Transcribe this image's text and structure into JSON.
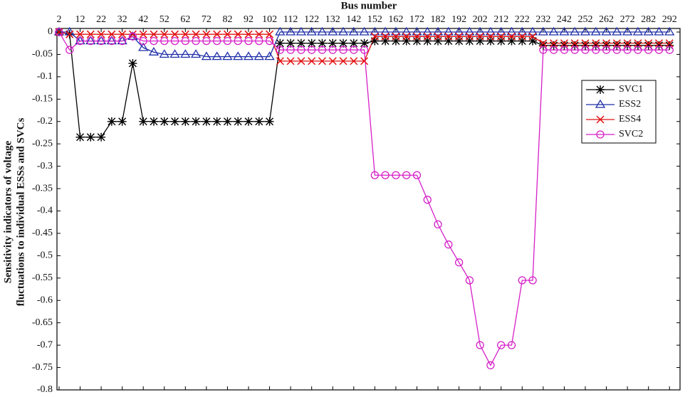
{
  "chart_data": {
    "type": "line",
    "x_label": "Bus number",
    "y_label": [
      "Sensitivity indicators of voltage",
      "fluctuations to individual ESSs and SVCs"
    ],
    "x": [
      2,
      7,
      12,
      17,
      22,
      27,
      32,
      37,
      42,
      47,
      52,
      57,
      62,
      67,
      72,
      77,
      82,
      87,
      92,
      97,
      102,
      107,
      112,
      117,
      122,
      127,
      132,
      137,
      142,
      147,
      152,
      157,
      162,
      167,
      172,
      177,
      182,
      187,
      192,
      197,
      202,
      207,
      212,
      217,
      222,
      227,
      232,
      237,
      242,
      247,
      252,
      257,
      262,
      267,
      272,
      277,
      282,
      287,
      292
    ],
    "series": [
      {
        "name": "SVC1",
        "color": "#000000",
        "marker": "asterisk",
        "values": [
          0,
          -0.005,
          -0.235,
          -0.235,
          -0.235,
          -0.2,
          -0.2,
          -0.07,
          -0.2,
          -0.2,
          -0.2,
          -0.2,
          -0.2,
          -0.2,
          -0.2,
          -0.2,
          -0.2,
          -0.2,
          -0.2,
          -0.2,
          -0.2,
          -0.025,
          -0.025,
          -0.025,
          -0.025,
          -0.025,
          -0.025,
          -0.025,
          -0.025,
          -0.025,
          -0.02,
          -0.02,
          -0.02,
          -0.02,
          -0.02,
          -0.02,
          -0.02,
          -0.02,
          -0.02,
          -0.02,
          -0.02,
          -0.02,
          -0.02,
          -0.02,
          -0.02,
          -0.02,
          -0.03,
          -0.03,
          -0.03,
          -0.03,
          -0.03,
          -0.03,
          -0.03,
          -0.03,
          -0.03,
          -0.03,
          -0.03,
          -0.03,
          -0.03
        ]
      },
      {
        "name": "ESS2",
        "color": "#1f2fa8",
        "marker": "triangle",
        "values": [
          0,
          0,
          -0.02,
          -0.02,
          -0.02,
          -0.02,
          -0.02,
          -0.01,
          -0.035,
          -0.045,
          -0.05,
          -0.05,
          -0.05,
          -0.05,
          -0.055,
          -0.055,
          -0.055,
          -0.055,
          -0.055,
          -0.055,
          -0.055,
          0,
          0,
          0,
          0,
          0,
          0,
          0,
          0,
          0,
          0,
          0,
          0,
          0,
          0,
          0,
          0,
          0,
          0,
          0,
          0,
          0,
          0,
          0,
          0,
          0,
          0,
          0,
          0,
          0,
          0,
          0,
          0,
          0,
          0,
          0,
          0,
          0,
          0
        ]
      },
      {
        "name": "ESS4",
        "color": "#e01010",
        "marker": "cross",
        "values": [
          0,
          -0.005,
          -0.005,
          -0.005,
          -0.005,
          -0.005,
          -0.005,
          -0.005,
          -0.005,
          -0.005,
          -0.005,
          -0.005,
          -0.005,
          -0.005,
          -0.005,
          -0.005,
          -0.005,
          -0.005,
          -0.005,
          -0.005,
          -0.005,
          -0.065,
          -0.065,
          -0.065,
          -0.065,
          -0.065,
          -0.065,
          -0.065,
          -0.065,
          -0.065,
          -0.01,
          -0.01,
          -0.01,
          -0.01,
          -0.01,
          -0.01,
          -0.01,
          -0.01,
          -0.01,
          -0.01,
          -0.01,
          -0.01,
          -0.01,
          -0.01,
          -0.01,
          -0.01,
          -0.025,
          -0.025,
          -0.025,
          -0.025,
          -0.025,
          -0.025,
          -0.025,
          -0.025,
          -0.025,
          -0.025,
          -0.025,
          -0.025,
          -0.025
        ]
      },
      {
        "name": "SVC2",
        "color": "#d61fc8",
        "marker": "circle",
        "values": [
          0,
          -0.04,
          -0.02,
          -0.02,
          -0.02,
          -0.02,
          -0.02,
          -0.01,
          -0.02,
          -0.02,
          -0.02,
          -0.02,
          -0.02,
          -0.02,
          -0.02,
          -0.02,
          -0.02,
          -0.02,
          -0.02,
          -0.02,
          -0.02,
          -0.04,
          -0.04,
          -0.04,
          -0.04,
          -0.04,
          -0.04,
          -0.04,
          -0.04,
          -0.04,
          -0.32,
          -0.32,
          -0.32,
          -0.32,
          -0.32,
          -0.375,
          -0.43,
          -0.475,
          -0.515,
          -0.555,
          -0.7,
          -0.745,
          -0.7,
          -0.7,
          -0.555,
          -0.555,
          -0.04,
          -0.04,
          -0.04,
          -0.04,
          -0.04,
          -0.04,
          -0.04,
          -0.04,
          -0.04,
          -0.04,
          -0.04,
          -0.04,
          -0.04
        ]
      }
    ],
    "xlim": [
      1,
      297
    ],
    "xticks": [
      2,
      12,
      22,
      32,
      42,
      52,
      62,
      72,
      82,
      92,
      102,
      112,
      122,
      132,
      142,
      152,
      162,
      172,
      182,
      192,
      202,
      212,
      222,
      232,
      242,
      252,
      262,
      272,
      282,
      292
    ],
    "ylim": [
      -0.8,
      0.008
    ],
    "yticks": [
      0,
      -0.05,
      -0.1,
      -0.15,
      -0.2,
      -0.25,
      -0.3,
      -0.35,
      -0.4,
      -0.45,
      -0.5,
      -0.55,
      -0.6,
      -0.65,
      -0.7,
      -0.75,
      -0.8
    ],
    "legend": "upper right",
    "grid": false
  }
}
